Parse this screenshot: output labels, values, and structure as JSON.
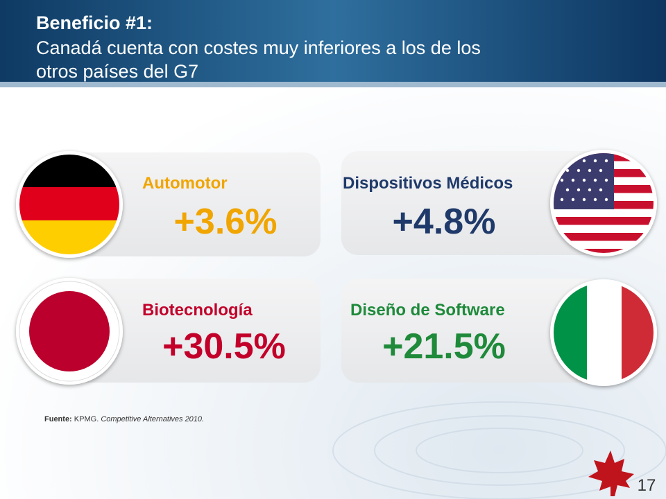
{
  "header": {
    "title": "Beneficio #1:",
    "subtitle_lines": [
      "Canadá cuenta con costes muy inferiores a los de los",
      "otros países del G7"
    ]
  },
  "cards": [
    {
      "sector": "Automotor",
      "value": "+3.6%"
    },
    {
      "sector": "Dispositivos Médicos",
      "value": "+4.8%"
    },
    {
      "sector": "Biotecnología",
      "value": "+30.5%"
    },
    {
      "sector": "Diseño de Software",
      "value": "+21.5%"
    }
  ],
  "source": {
    "label": "Fuente:",
    "org": "KPMG.",
    "publication": "Competitive Alternatives 2010."
  },
  "page_number": "17"
}
